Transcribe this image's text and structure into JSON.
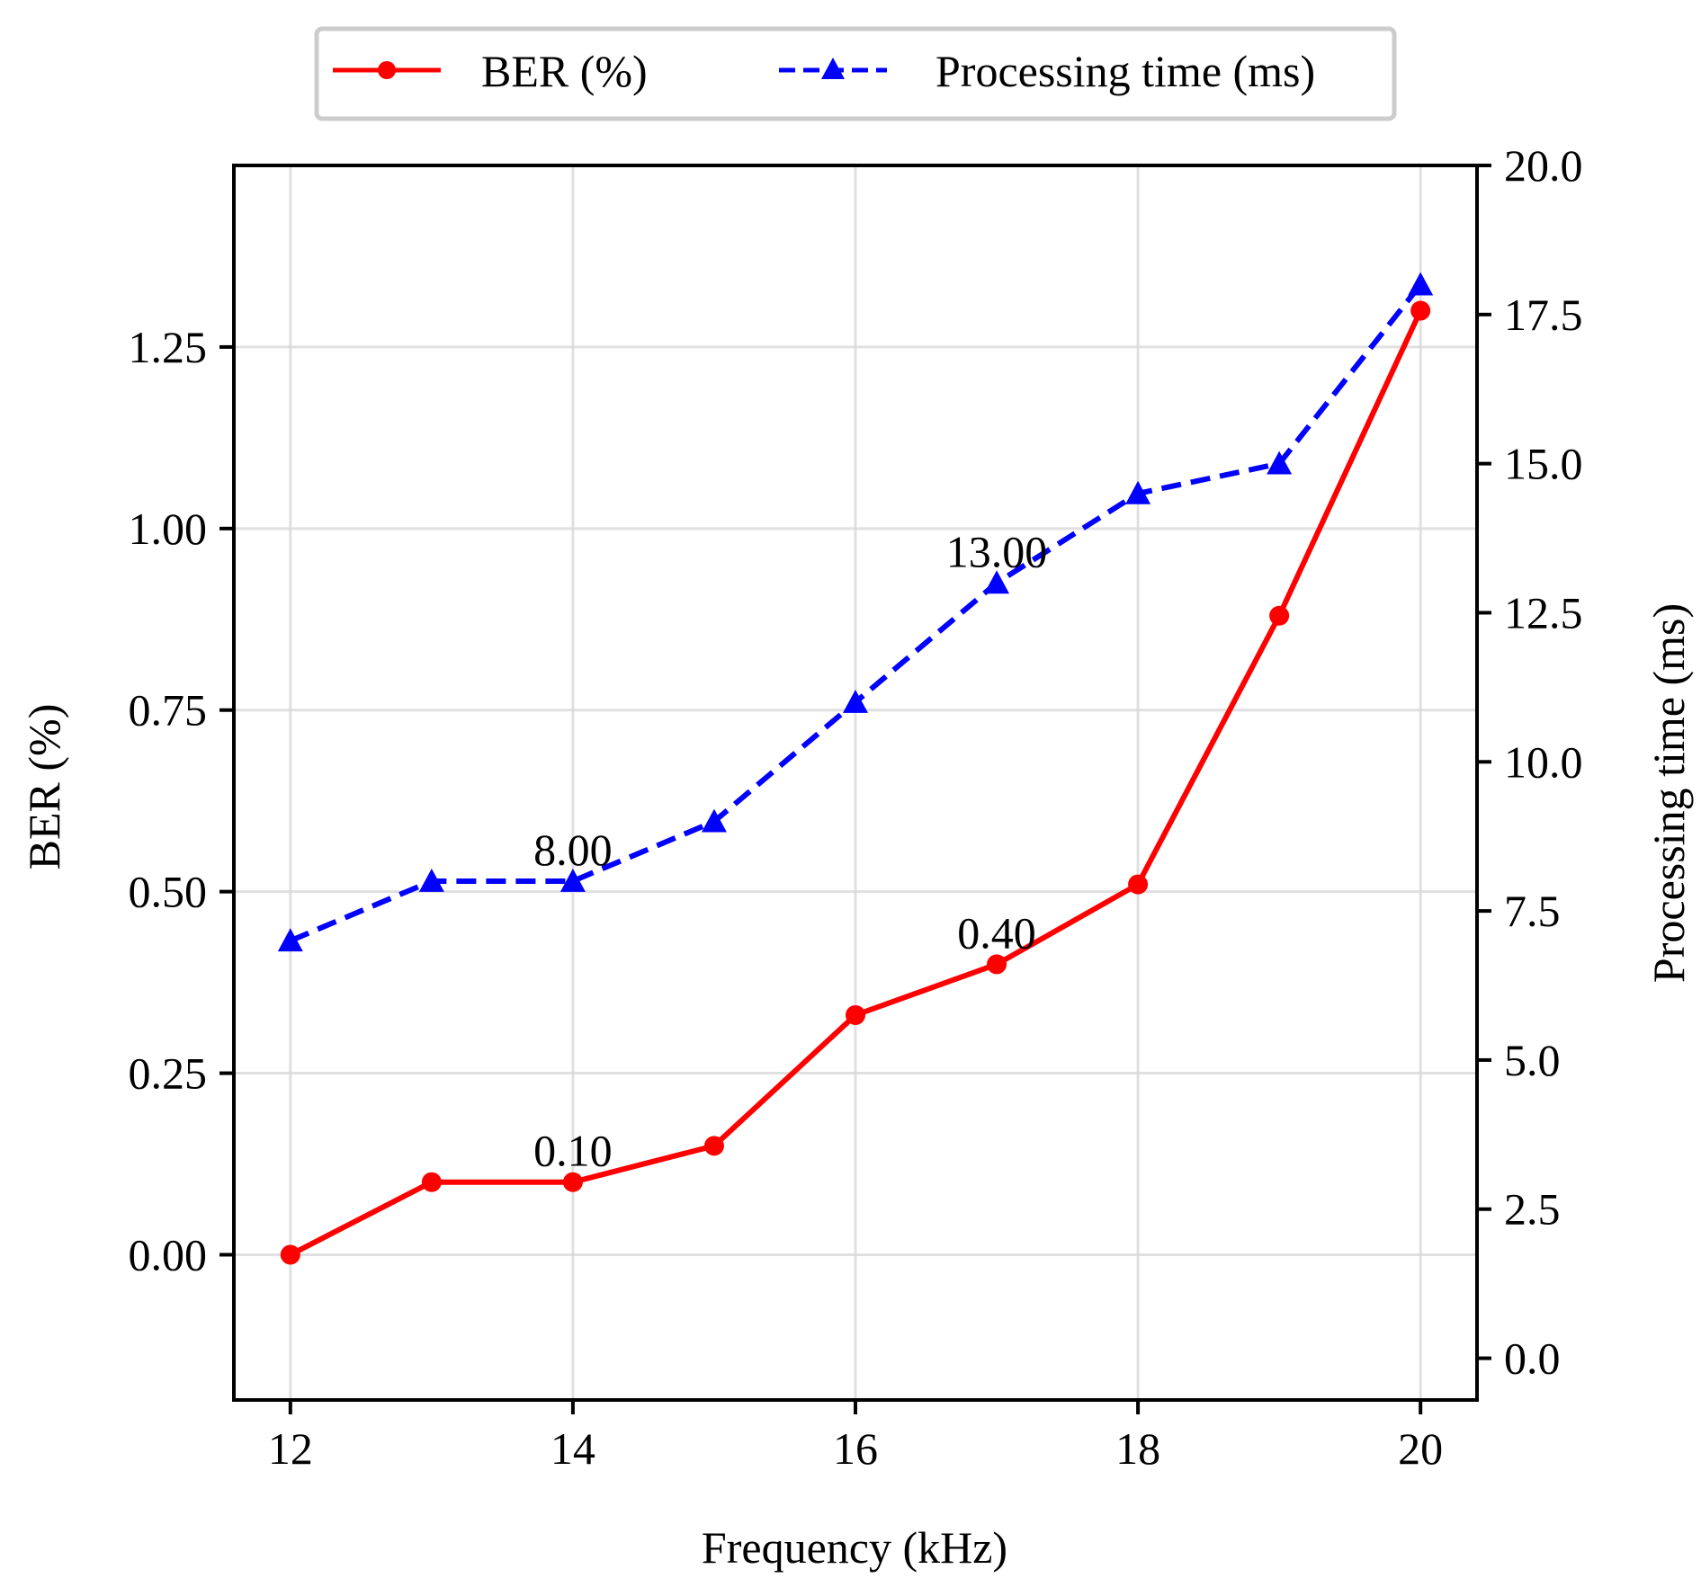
{
  "chart_data": {
    "type": "line",
    "x": [
      12,
      13,
      14,
      15,
      16,
      17,
      18,
      19,
      20
    ],
    "xlabel": "Frequency (kHz)",
    "ylabel_left": "BER (%)",
    "ylabel_right": "Processing time (ms)",
    "xlim": [
      11.6,
      20.4
    ],
    "ylim_left": [
      -0.2,
      1.5
    ],
    "ylim_right": [
      -0.7,
      20.0
    ],
    "x_ticks": [
      "12",
      "14",
      "16",
      "18",
      "20"
    ],
    "y_left_ticks": [
      "0.00",
      "0.25",
      "0.50",
      "0.75",
      "1.00",
      "1.25"
    ],
    "y_right_ticks": [
      "0.0",
      "2.5",
      "5.0",
      "7.5",
      "10.0",
      "12.5",
      "15.0",
      "17.5",
      "20.0"
    ],
    "grid": true,
    "legend_position": "top-center",
    "series": [
      {
        "name": "BER (%)",
        "axis": "left",
        "color": "#ff0000",
        "line_style": "solid",
        "marker": "circle",
        "values": [
          0.0,
          0.1,
          0.1,
          0.15,
          0.33,
          0.4,
          0.51,
          0.88,
          1.3
        ]
      },
      {
        "name": "Processing time (ms)",
        "axis": "right",
        "color": "#0000ff",
        "line_style": "dashed",
        "marker": "triangle",
        "values": [
          7.0,
          8.0,
          8.0,
          9.0,
          11.0,
          13.0,
          14.5,
          15.0,
          18.0
        ]
      }
    ],
    "annotations": [
      {
        "series": "BER (%)",
        "x": 14,
        "y": 0.1,
        "text": "0.10"
      },
      {
        "series": "BER (%)",
        "x": 17,
        "y": 0.4,
        "text": "0.40"
      },
      {
        "series": "Processing time (ms)",
        "x": 14,
        "y": 8.0,
        "text": "8.00"
      },
      {
        "series": "Processing time (ms)",
        "x": 17,
        "y": 13.0,
        "text": "13.00"
      }
    ]
  }
}
